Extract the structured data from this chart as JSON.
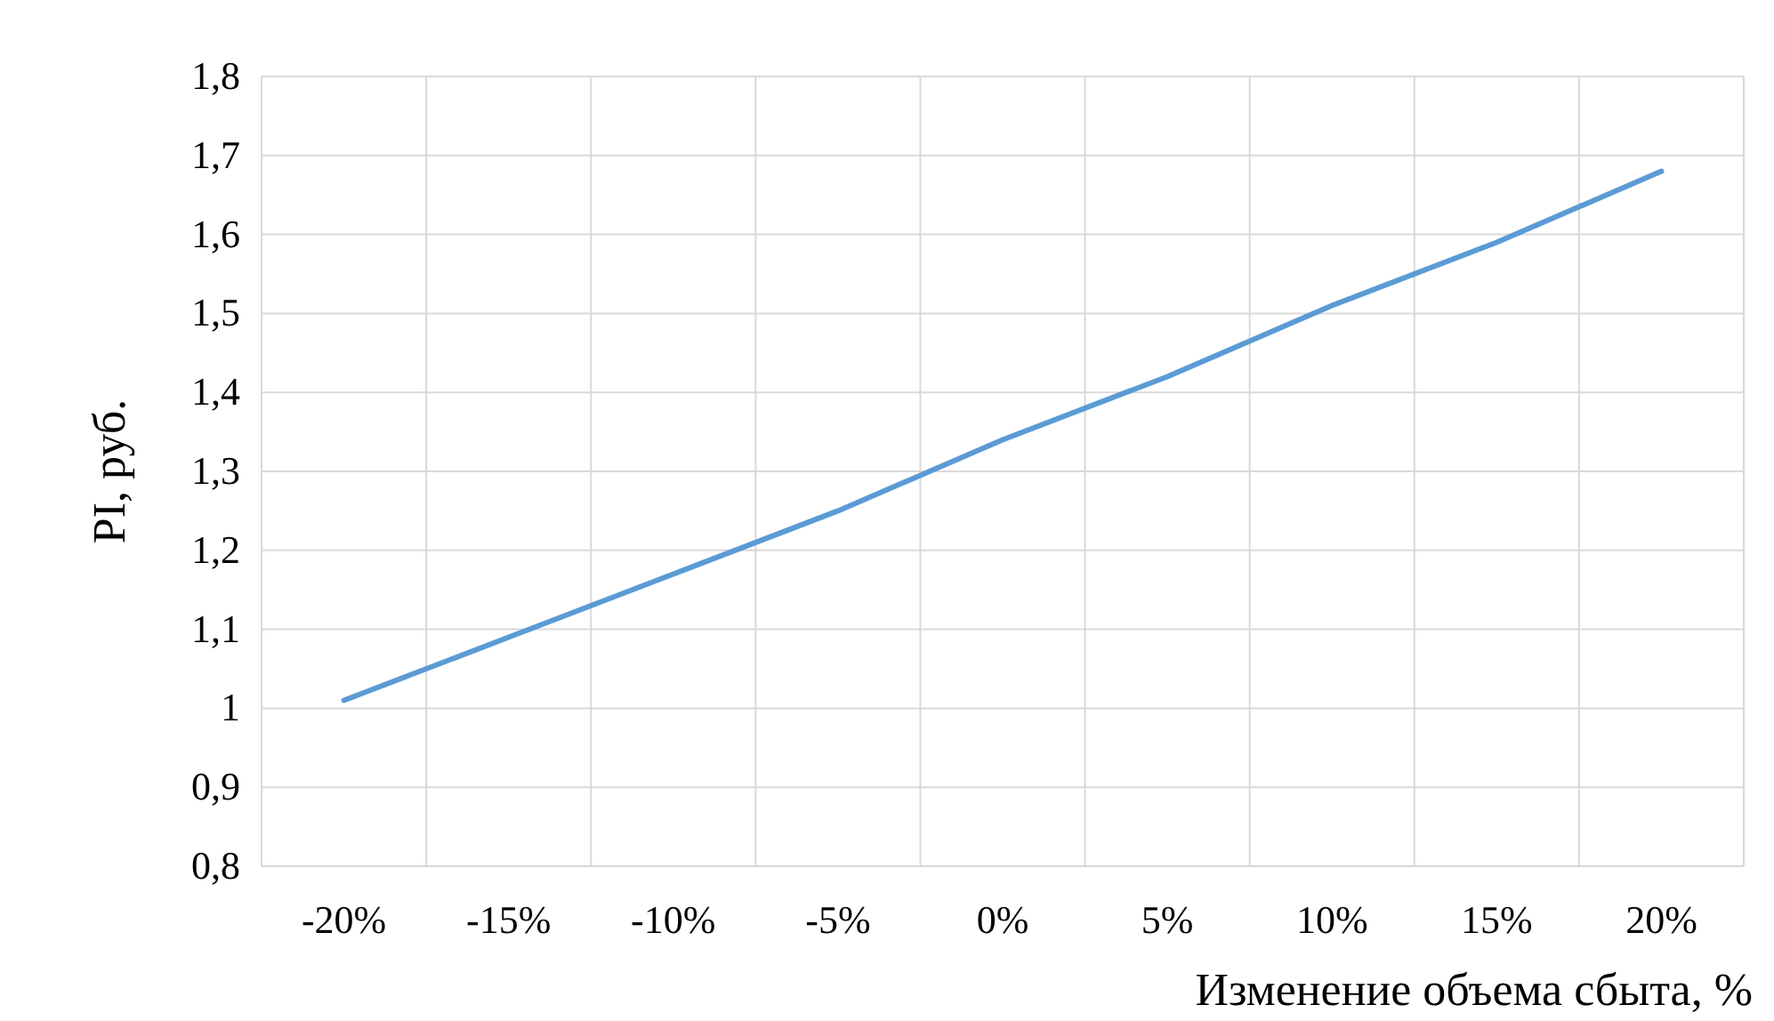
{
  "chart_data": {
    "type": "line",
    "xlabel": "Изменение объема сбыта, %",
    "ylabel": "PI, руб.",
    "categories": [
      "-20%",
      "-15%",
      "-10%",
      "-5%",
      "0%",
      "5%",
      "10%",
      "15%",
      "20%"
    ],
    "series": [
      {
        "color": "#5b9bd5",
        "values": [
          1.01,
          1.09,
          1.17,
          1.25,
          1.34,
          1.42,
          1.51,
          1.59,
          1.68
        ]
      }
    ],
    "ylim": [
      0.8,
      1.8
    ],
    "yticks": [
      {
        "value": 0.8,
        "label": "0,8"
      },
      {
        "value": 0.9,
        "label": "0,9"
      },
      1,
      {
        "value": 1.1,
        "label": "1,1"
      },
      {
        "value": 1.2,
        "label": "1,2"
      },
      {
        "value": 1.3,
        "label": "1,3"
      },
      {
        "value": 1.4,
        "label": "1,4"
      },
      {
        "value": 1.5,
        "label": "1,5"
      },
      {
        "value": 1.6,
        "label": "1,6"
      },
      {
        "value": 1.7,
        "label": "1,7"
      },
      {
        "value": 1.8,
        "label": "1,8"
      }
    ],
    "grid": true
  }
}
